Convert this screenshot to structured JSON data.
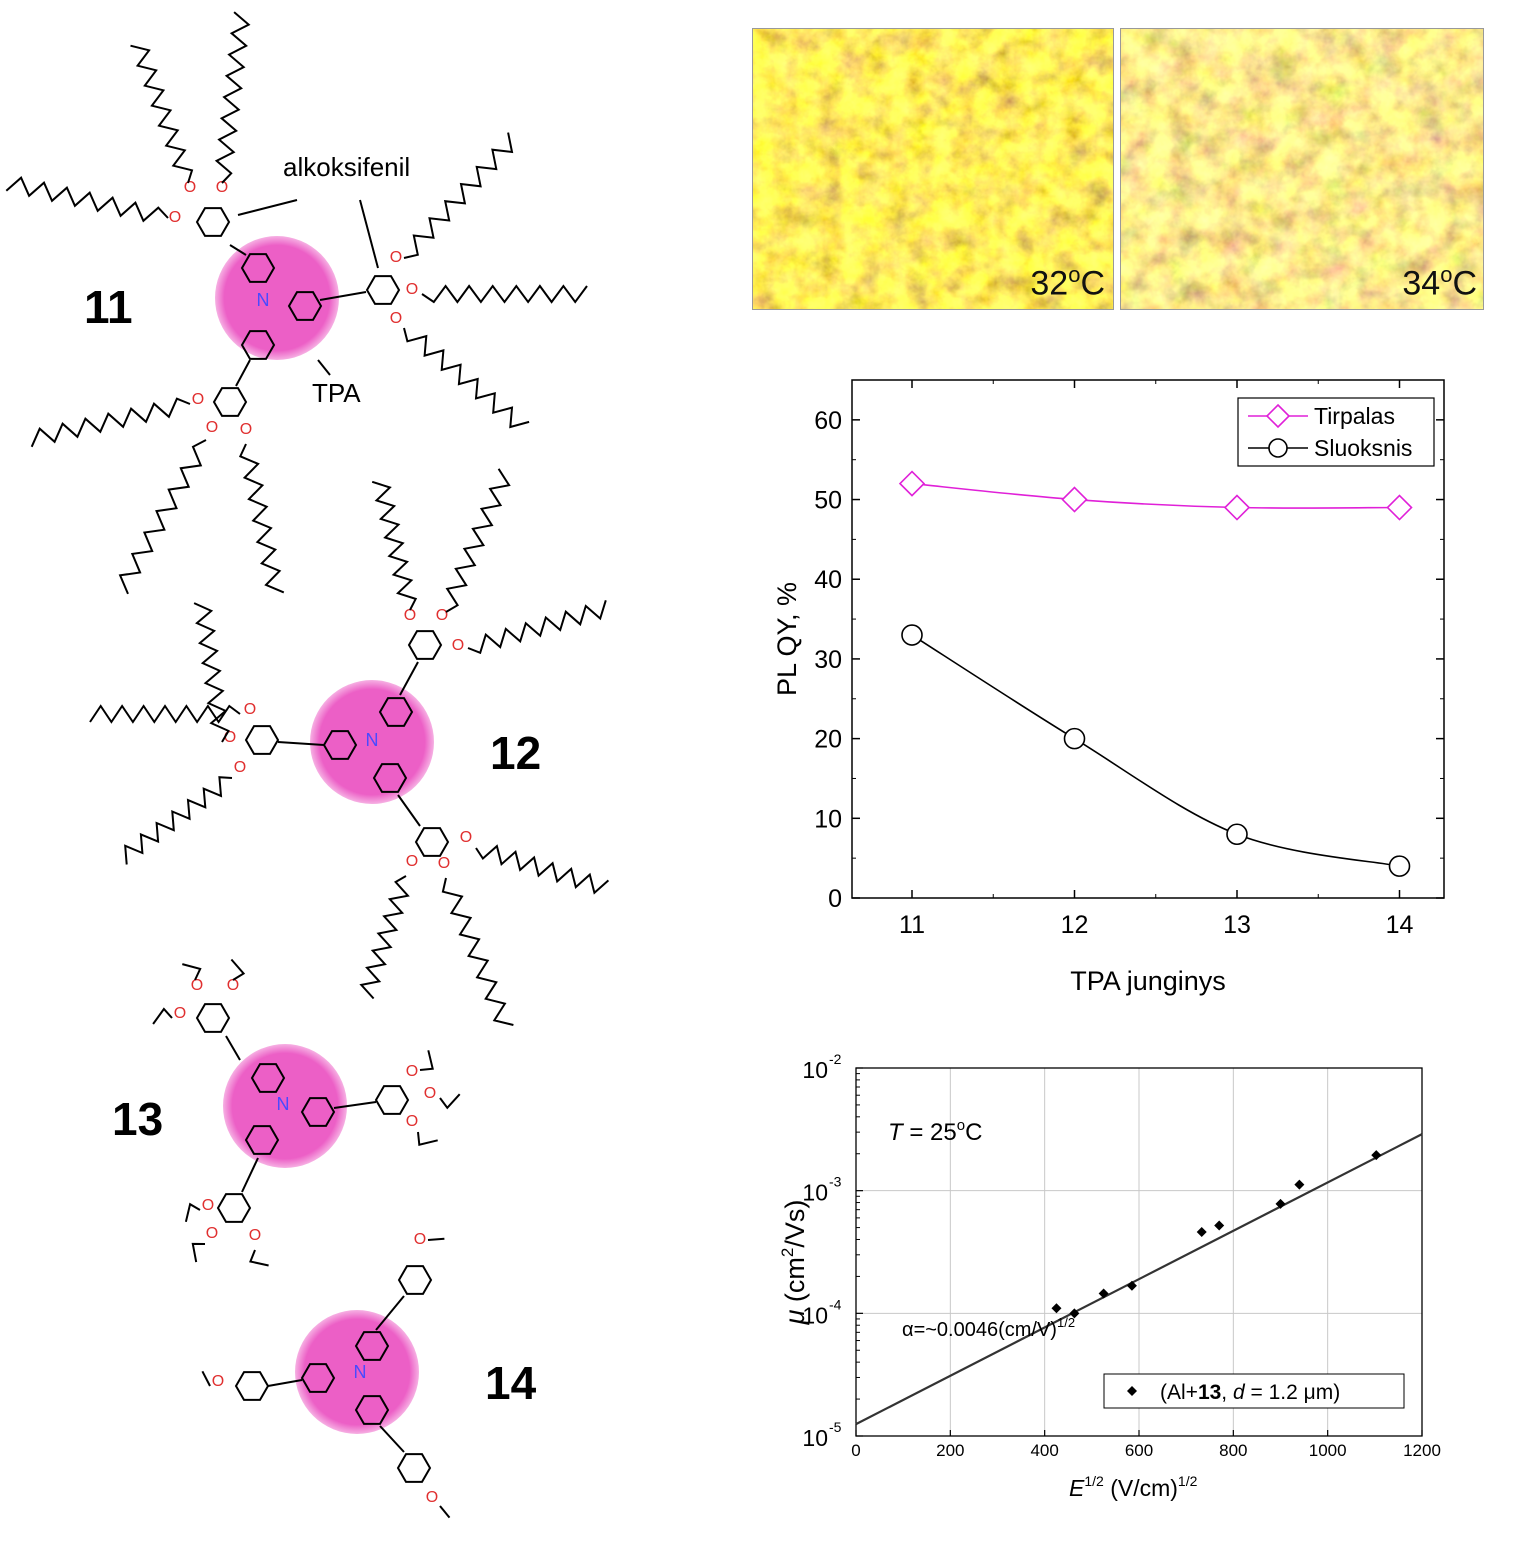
{
  "molecules": {
    "labels": [
      "11",
      "12",
      "13",
      "14"
    ],
    "annotation_alkoxy": "alkoksifenil",
    "annotation_tpa": "TPA",
    "atom_N": "N",
    "atom_O": "O"
  },
  "photos": {
    "left_temp": "32",
    "right_temp": "34",
    "unit": "C",
    "deg": "o"
  },
  "colors": {
    "pink_core": "#ec5fc6",
    "tirpalas": "#e020d8",
    "sluoksnis": "#000000",
    "nitrogen": "#4a4aff",
    "oxygen": "#e03030"
  },
  "chart_data": [
    {
      "type": "line",
      "categories": [
        "11",
        "12",
        "13",
        "14"
      ],
      "series": [
        {
          "name": "Tirpalas",
          "values": [
            52,
            50,
            49,
            49
          ]
        },
        {
          "name": "Sluoksnis",
          "values": [
            33,
            20,
            8,
            4
          ]
        }
      ],
      "xlabel": "TPA junginys",
      "ylabel": "PL QY, %",
      "ylim": [
        0,
        65
      ],
      "yticks": [
        "0",
        "10",
        "20",
        "30",
        "40",
        "50",
        "60"
      ],
      "legend": "top-right",
      "grid": false
    },
    {
      "type": "scatter",
      "x": [
        425,
        463,
        525,
        585,
        733,
        770,
        900,
        940,
        1103
      ],
      "y": [
        0.00011,
        0.0001,
        0.000145,
        0.000168,
        0.00046,
        0.00052,
        0.00078,
        0.00112,
        0.00195
      ],
      "series_name_parts": {
        "pre": "(Al+",
        "bold": "13",
        "mid": ", ",
        "ital": "d",
        "post": " = 1.2 μm)"
      },
      "fit_line": {
        "intercept": 1.25e-05,
        "slope_log10_per_unit": 0.00197
      },
      "xlabel": {
        "var": "E",
        "sup": "1/2",
        "unit": " (V/cm)",
        "unit_sup": "1/2"
      },
      "ylabel": {
        "var": "μ",
        "unit": "  (cm",
        "sup": "2",
        "rest": "/Vs)"
      },
      "xlim": [
        0,
        1200
      ],
      "ylim": [
        1e-05,
        0.01
      ],
      "xticks": [
        "0",
        "200",
        "400",
        "600",
        "800",
        "1000",
        "1200"
      ],
      "yticks": [
        {
          "base": "10",
          "exp": "-5"
        },
        {
          "base": "10",
          "exp": "-4"
        },
        {
          "base": "10",
          "exp": "-3"
        },
        {
          "base": "10",
          "exp": "-2"
        }
      ],
      "log_y": true,
      "grid": true,
      "annotation_temp": {
        "var": "T",
        "text": " = 25",
        "deg": "o",
        "unit": "C"
      },
      "annotation_alpha": {
        "text": "α=~0.0046(cm/V)",
        "sup": "1/2"
      },
      "legend": "bottom-right"
    }
  ]
}
